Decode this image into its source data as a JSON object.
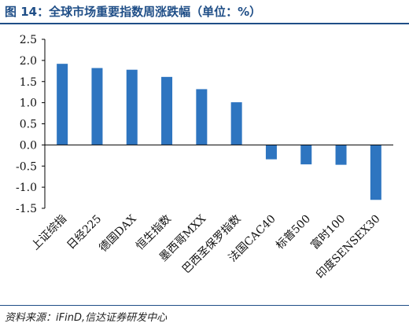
{
  "header": {
    "title": "图 14：全球市场重要指数周涨跌幅（单位：%）"
  },
  "footer": {
    "source": "资料来源：iFinD,信达证券研发中心"
  },
  "chart_data": {
    "type": "bar",
    "title": "图 14：全球市场重要指数周涨跌幅（单位：%）",
    "xlabel": "",
    "ylabel": "",
    "ylim": [
      -1.5,
      2.5
    ],
    "yticks": [
      2.5,
      2.0,
      1.5,
      1.0,
      0.5,
      0.0,
      -0.5,
      -1.0,
      -1.5
    ],
    "ytick_labels": [
      "2.5",
      "2.0",
      "1.5",
      "1.0",
      "0.5",
      "0.0",
      "-0.5",
      "-1.0",
      "-1.5"
    ],
    "grid": false,
    "legend": "none",
    "bar_color": "#2e75c0",
    "categories": [
      "上证综指",
      "日经225",
      "德国DAX",
      "恒生指数",
      "墨西哥MXX",
      "巴西圣保罗指数",
      "法国CAC40",
      "标普500",
      "富时100",
      "印度SENSEX30"
    ],
    "values": [
      1.92,
      1.82,
      1.78,
      1.61,
      1.32,
      1.01,
      -0.34,
      -0.46,
      -0.47,
      -1.3
    ]
  }
}
